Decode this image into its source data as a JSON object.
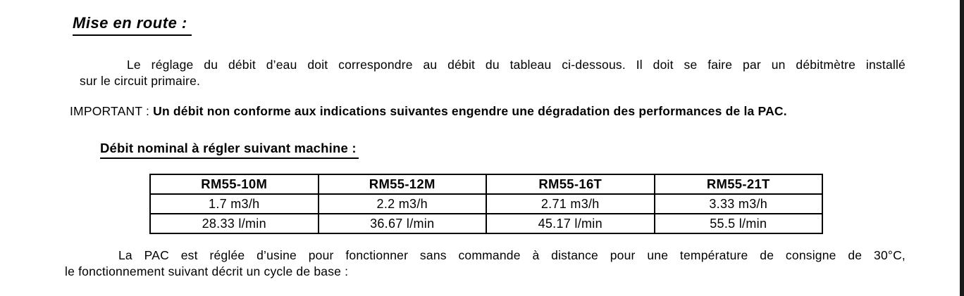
{
  "page": {
    "title": "Mise en route :",
    "paragraph1": {
      "line1": "Le réglage du débit d’eau doit correspondre au débit du tableau ci-dessous. Il doit se faire par un débitmètre installé",
      "line2": "sur le circuit primaire."
    },
    "important": {
      "prefix": "IMPORTANT : ",
      "bold_text": "Un débit non conforme aux indications suivantes engendre une dégradation des performances de la PAC."
    },
    "subheading": "Débit nominal à régler suivant machine :",
    "paragraph2": {
      "line1": "La PAC est réglée d’usine pour fonctionner sans commande à distance pour une température de consigne de 30°C,",
      "line2": "le fonctionnement suivant décrit un cycle de base :"
    }
  },
  "table": {
    "headers": [
      "RM55-10M",
      "RM55-12M",
      "RM55-16T",
      "RM55-21T"
    ],
    "rows": [
      [
        "1.7 m3/h",
        "2.2 m3/h",
        "2.71 m3/h",
        "3.33 m3/h"
      ],
      [
        "28.33 l/min",
        "36.67 l/min",
        "45.17 l/min",
        "55.5 l/min"
      ]
    ]
  },
  "colors": {
    "text": "#000000",
    "background": "#ffffff",
    "right_bar": "#1a1a1a"
  }
}
